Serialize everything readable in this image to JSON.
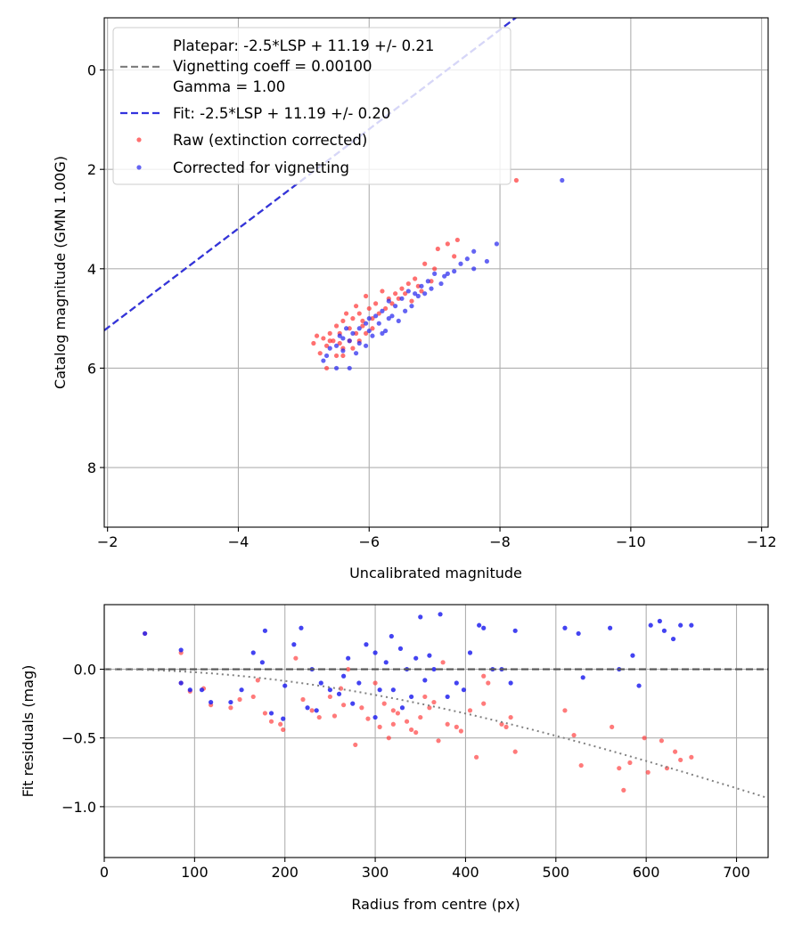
{
  "chart_data": [
    {
      "type": "scatter",
      "xlabel": "Uncalibrated magnitude",
      "ylabel": "Catalog magnitude (GMN 1.00G)",
      "xlim": [
        -1.95,
        -12.1
      ],
      "ylim": [
        9.2,
        -1.05
      ],
      "xticks": [
        -2,
        -4,
        -6,
        -8,
        -10,
        -12
      ],
      "xtick_labels": [
        "−2",
        "−4",
        "−6",
        "−8",
        "−10",
        "−12"
      ],
      "yticks": [
        0,
        2,
        4,
        6,
        8
      ],
      "ytick_labels": [
        "0",
        "2",
        "4",
        "6",
        "8"
      ],
      "grid": true,
      "legend_position": "upper-left",
      "legend": {
        "platepar_line1": "Platepar: -2.5*LSP + 11.19 +/- 0.21",
        "platepar_line2": "Vignetting coeff = 0.00100",
        "platepar_line3": "Gamma = 1.00",
        "fit": "Fit: -2.5*LSP + 11.19 +/- 0.20",
        "raw": "Raw (extinction corrected)",
        "corrected": "Corrected for vignetting"
      },
      "lines": [
        {
          "name": "Platepar",
          "slope": -2.5,
          "intercept": 11.19,
          "color": "#808080",
          "style": "dashed"
        },
        {
          "name": "Fit",
          "slope": -2.5,
          "intercept": 11.19,
          "color": "#3333dd",
          "style": "dashed"
        }
      ],
      "series": [
        {
          "name": "Raw (extinction corrected)",
          "color": "#ff3333",
          "points": [
            [
              -8.25,
              2.22
            ],
            [
              -7.35,
              3.42
            ],
            [
              -7.2,
              3.5
            ],
            [
              -7.05,
              3.6
            ],
            [
              -7.3,
              3.75
            ],
            [
              -7.0,
              4.0
            ],
            [
              -6.85,
              3.9
            ],
            [
              -6.95,
              4.25
            ],
            [
              -6.7,
              4.2
            ],
            [
              -6.8,
              4.45
            ],
            [
              -6.6,
              4.3
            ],
            [
              -6.5,
              4.4
            ],
            [
              -6.4,
              4.5
            ],
            [
              -6.3,
              4.6
            ],
            [
              -6.2,
              4.45
            ],
            [
              -6.1,
              4.7
            ],
            [
              -6.0,
              4.8
            ],
            [
              -5.95,
              4.55
            ],
            [
              -5.85,
              4.9
            ],
            [
              -5.9,
              5.05
            ],
            [
              -5.75,
              5.0
            ],
            [
              -5.8,
              4.75
            ],
            [
              -5.7,
              5.2
            ],
            [
              -5.6,
              5.05
            ],
            [
              -5.65,
              4.9
            ],
            [
              -5.55,
              5.3
            ],
            [
              -5.5,
              5.15
            ],
            [
              -5.45,
              5.45
            ],
            [
              -5.4,
              5.3
            ],
            [
              -5.35,
              5.55
            ],
            [
              -5.3,
              5.4
            ],
            [
              -5.25,
              5.7
            ],
            [
              -5.2,
              5.35
            ],
            [
              -5.15,
              5.5
            ],
            [
              -5.6,
              5.6
            ],
            [
              -5.7,
              5.45
            ],
            [
              -5.8,
              5.3
            ],
            [
              -5.9,
              5.15
            ],
            [
              -6.05,
              5.0
            ],
            [
              -6.15,
              4.9
            ],
            [
              -6.25,
              4.8
            ],
            [
              -6.35,
              4.7
            ],
            [
              -6.45,
              4.6
            ],
            [
              -6.55,
              4.5
            ],
            [
              -6.65,
              4.65
            ],
            [
              -6.75,
              4.35
            ],
            [
              -5.5,
              5.75
            ],
            [
              -5.35,
              6.0
            ],
            [
              -5.6,
              5.75
            ],
            [
              -5.75,
              5.6
            ],
            [
              -5.95,
              5.3
            ],
            [
              -6.05,
              5.2
            ],
            [
              -5.85,
              5.45
            ],
            [
              -5.55,
              5.5
            ],
            [
              -5.4,
              5.45
            ]
          ]
        },
        {
          "name": "Corrected for vignetting",
          "color": "#2222ee",
          "points": [
            [
              -8.95,
              2.22
            ],
            [
              -7.95,
              3.5
            ],
            [
              -7.6,
              3.65
            ],
            [
              -7.8,
              3.85
            ],
            [
              -7.4,
              3.9
            ],
            [
              -7.5,
              3.8
            ],
            [
              -7.3,
              4.05
            ],
            [
              -7.15,
              4.15
            ],
            [
              -7.0,
              4.1
            ],
            [
              -6.9,
              4.25
            ],
            [
              -6.8,
              4.35
            ],
            [
              -6.7,
              4.5
            ],
            [
              -6.6,
              4.45
            ],
            [
              -6.5,
              4.6
            ],
            [
              -6.4,
              4.75
            ],
            [
              -6.3,
              4.65
            ],
            [
              -6.2,
              4.85
            ],
            [
              -6.1,
              4.95
            ],
            [
              -6.0,
              5.0
            ],
            [
              -5.95,
              5.1
            ],
            [
              -5.85,
              5.2
            ],
            [
              -5.75,
              5.3
            ],
            [
              -5.7,
              5.45
            ],
            [
              -5.6,
              5.4
            ],
            [
              -5.5,
              5.55
            ],
            [
              -5.4,
              5.6
            ],
            [
              -5.35,
              5.75
            ],
            [
              -5.3,
              5.85
            ],
            [
              -5.5,
              6.0
            ],
            [
              -5.7,
              6.0
            ],
            [
              -5.8,
              5.7
            ],
            [
              -5.6,
              5.65
            ],
            [
              -6.05,
              5.35
            ],
            [
              -6.15,
              5.1
            ],
            [
              -6.25,
              5.25
            ],
            [
              -6.35,
              4.95
            ],
            [
              -6.55,
              4.85
            ],
            [
              -6.65,
              4.75
            ],
            [
              -6.75,
              4.55
            ],
            [
              -6.85,
              4.5
            ],
            [
              -6.95,
              4.4
            ],
            [
              -7.1,
              4.3
            ],
            [
              -6.45,
              5.05
            ],
            [
              -6.2,
              5.3
            ],
            [
              -5.95,
              5.55
            ],
            [
              -5.85,
              5.5
            ],
            [
              -5.65,
              5.2
            ],
            [
              -5.55,
              5.35
            ],
            [
              -6.3,
              5.0
            ],
            [
              -6.0,
              5.25
            ],
            [
              -7.2,
              4.1
            ],
            [
              -7.6,
              4.0
            ]
          ]
        }
      ]
    },
    {
      "type": "scatter",
      "xlabel": "Radius from centre (px)",
      "ylabel": "Fit residuals (mag)",
      "xlim": [
        0,
        735
      ],
      "ylim": [
        -1.37,
        0.47
      ],
      "xticks": [
        0,
        100,
        200,
        300,
        400,
        500,
        600,
        700
      ],
      "xtick_labels": [
        "0",
        "100",
        "200",
        "300",
        "400",
        "500",
        "600",
        "700"
      ],
      "yticks": [
        0.0,
        -0.5,
        -1.0
      ],
      "ytick_labels": [
        "0.0",
        "−0.5",
        "−1.0"
      ],
      "grid": true,
      "zero_line": {
        "y": 0.0,
        "color": "#555555",
        "style": "dashed"
      },
      "vignetting_curve": {
        "coeff": 0.001,
        "color": "#808080",
        "style": "dotted"
      },
      "series": [
        {
          "name": "Raw (extinction corrected)",
          "color": "#ff3333",
          "points": [
            [
              45,
              0.26
            ],
            [
              85,
              0.12
            ],
            [
              85,
              -0.1
            ],
            [
              95,
              -0.16
            ],
            [
              110,
              -0.14
            ],
            [
              118,
              -0.26
            ],
            [
              140,
              -0.28
            ],
            [
              150,
              -0.22
            ],
            [
              165,
              -0.2
            ],
            [
              170,
              -0.08
            ],
            [
              178,
              -0.32
            ],
            [
              185,
              -0.38
            ],
            [
              195,
              -0.4
            ],
            [
              198,
              -0.44
            ],
            [
              212,
              0.08
            ],
            [
              220,
              -0.22
            ],
            [
              230,
              -0.3
            ],
            [
              238,
              -0.35
            ],
            [
              250,
              -0.2
            ],
            [
              255,
              -0.34
            ],
            [
              265,
              -0.26
            ],
            [
              270,
              0.0
            ],
            [
              278,
              -0.55
            ],
            [
              285,
              -0.28
            ],
            [
              292,
              -0.36
            ],
            [
              300,
              -0.1
            ],
            [
              305,
              -0.42
            ],
            [
              310,
              -0.25
            ],
            [
              315,
              -0.5
            ],
            [
              320,
              -0.3
            ],
            [
              325,
              -0.32
            ],
            [
              335,
              -0.38
            ],
            [
              340,
              -0.44
            ],
            [
              345,
              -0.46
            ],
            [
              350,
              -0.35
            ],
            [
              355,
              -0.2
            ],
            [
              360,
              -0.28
            ],
            [
              365,
              -0.24
            ],
            [
              370,
              -0.52
            ],
            [
              380,
              -0.4
            ],
            [
              390,
              -0.42
            ],
            [
              395,
              -0.45
            ],
            [
              405,
              -0.3
            ],
            [
              412,
              -0.64
            ],
            [
              420,
              -0.25
            ],
            [
              425,
              -0.1
            ],
            [
              440,
              -0.4
            ],
            [
              445,
              -0.42
            ],
            [
              450,
              -0.35
            ],
            [
              455,
              -0.6
            ],
            [
              510,
              -0.3
            ],
            [
              520,
              -0.48
            ],
            [
              528,
              -0.7
            ],
            [
              562,
              -0.42
            ],
            [
              570,
              -0.72
            ],
            [
              575,
              -0.88
            ],
            [
              582,
              -0.68
            ],
            [
              598,
              -0.5
            ],
            [
              602,
              -0.75
            ],
            [
              617,
              -0.52
            ],
            [
              623,
              -0.72
            ],
            [
              632,
              -0.6
            ],
            [
              638,
              -0.66
            ],
            [
              650,
              -0.64
            ],
            [
              262,
              -0.14
            ],
            [
              320,
              -0.4
            ],
            [
              420,
              -0.05
            ],
            [
              375,
              0.05
            ]
          ]
        },
        {
          "name": "Corrected for vignetting",
          "color": "#2222ee",
          "points": [
            [
              45,
              0.26
            ],
            [
              85,
              0.14
            ],
            [
              85,
              -0.1
            ],
            [
              95,
              -0.15
            ],
            [
              108,
              -0.15
            ],
            [
              118,
              -0.24
            ],
            [
              140,
              -0.24
            ],
            [
              152,
              -0.15
            ],
            [
              165,
              0.12
            ],
            [
              175,
              0.05
            ],
            [
              178,
              0.28
            ],
            [
              185,
              -0.32
            ],
            [
              198,
              -0.36
            ],
            [
              200,
              -0.12
            ],
            [
              210,
              0.18
            ],
            [
              218,
              0.3
            ],
            [
              225,
              -0.28
            ],
            [
              230,
              0.0
            ],
            [
              235,
              -0.3
            ],
            [
              240,
              -0.1
            ],
            [
              250,
              -0.15
            ],
            [
              260,
              -0.18
            ],
            [
              270,
              0.08
            ],
            [
              275,
              -0.25
            ],
            [
              282,
              -0.1
            ],
            [
              290,
              0.18
            ],
            [
              300,
              0.12
            ],
            [
              305,
              -0.15
            ],
            [
              312,
              0.05
            ],
            [
              318,
              0.24
            ],
            [
              320,
              -0.15
            ],
            [
              328,
              0.15
            ],
            [
              335,
              0.0
            ],
            [
              340,
              -0.2
            ],
            [
              345,
              0.08
            ],
            [
              350,
              0.38
            ],
            [
              355,
              -0.08
            ],
            [
              360,
              0.1
            ],
            [
              365,
              0.0
            ],
            [
              372,
              0.4
            ],
            [
              380,
              -0.2
            ],
            [
              390,
              -0.1
            ],
            [
              398,
              -0.15
            ],
            [
              405,
              0.12
            ],
            [
              415,
              0.32
            ],
            [
              420,
              0.3
            ],
            [
              430,
              0.0
            ],
            [
              440,
              0.0
            ],
            [
              450,
              -0.1
            ],
            [
              455,
              0.28
            ],
            [
              510,
              0.3
            ],
            [
              525,
              0.26
            ],
            [
              530,
              -0.06
            ],
            [
              560,
              0.3
            ],
            [
              570,
              0.0
            ],
            [
              585,
              0.1
            ],
            [
              592,
              -0.12
            ],
            [
              605,
              0.32
            ],
            [
              615,
              0.35
            ],
            [
              620,
              0.28
            ],
            [
              630,
              0.22
            ],
            [
              638,
              0.32
            ],
            [
              650,
              0.32
            ],
            [
              265,
              -0.05
            ],
            [
              300,
              -0.35
            ],
            [
              330,
              -0.28
            ]
          ]
        }
      ]
    }
  ]
}
